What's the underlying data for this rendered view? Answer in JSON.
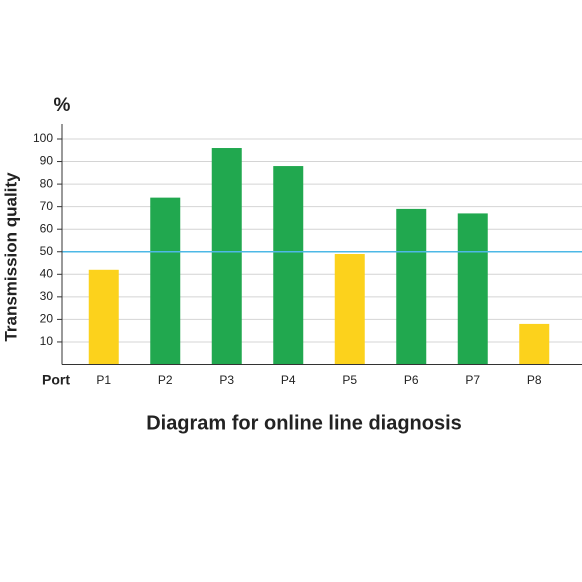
{
  "chart_data": {
    "type": "bar",
    "title": "Diagram for online line diagnosis",
    "y_unit": "%",
    "y_label": "Transmission quality",
    "x_label": "Port",
    "categories": [
      "P1",
      "P2",
      "P3",
      "P4",
      "P5",
      "P6",
      "P7",
      "P8"
    ],
    "values": [
      42,
      74,
      96,
      88,
      49,
      69,
      67,
      18
    ],
    "colors": [
      "#fcd21c",
      "#21a84f",
      "#21a84f",
      "#21a84f",
      "#fcd21c",
      "#21a84f",
      "#21a84f",
      "#fcd21c"
    ],
    "reference_line": 50,
    "reference_color": "#4db8e6",
    "ylim": [
      0,
      100
    ],
    "yticks": [
      10,
      20,
      30,
      40,
      50,
      60,
      70,
      80,
      90,
      100
    ],
    "grid": true
  }
}
